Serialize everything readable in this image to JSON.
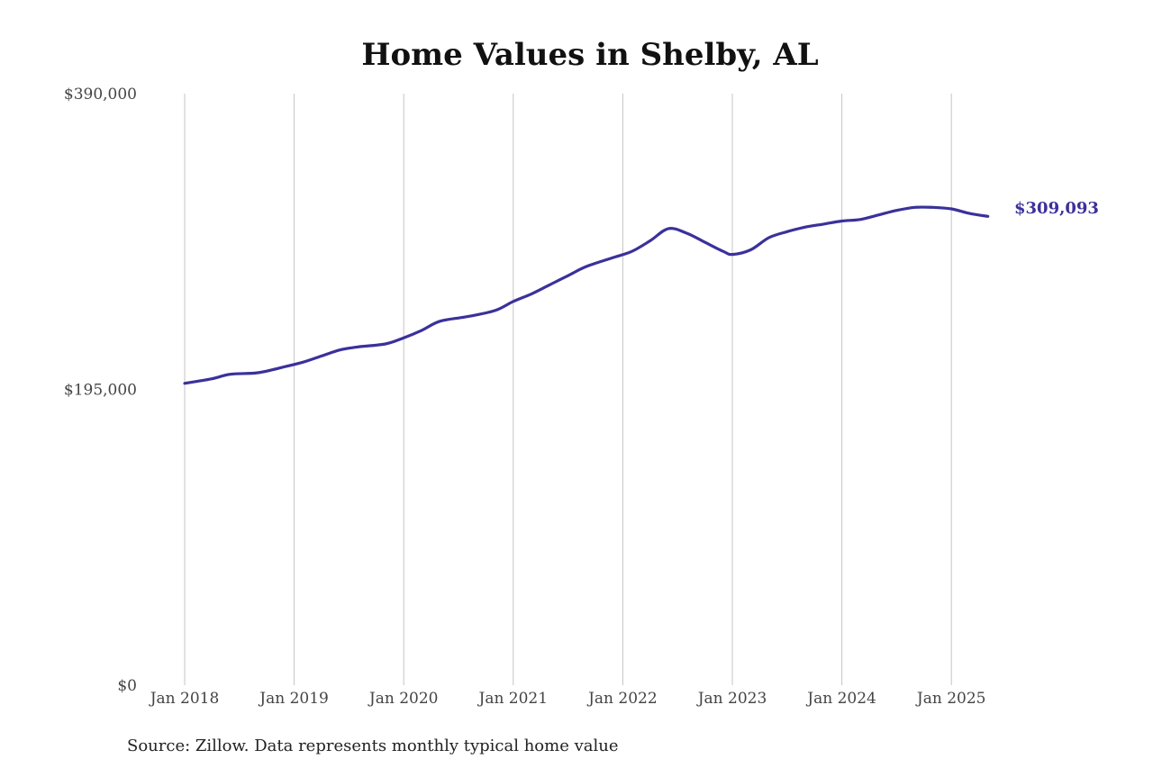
{
  "colors": {
    "series": "#3a319b",
    "title": "#111111",
    "grid": "#c4c4c4"
  },
  "footer": {
    "source": "Source: Zillow. Data represents monthly typical home value"
  },
  "chart_data": {
    "type": "line",
    "title": "Home Values in Shelby, AL",
    "ylim": [
      0,
      390000
    ],
    "yticks": [
      {
        "value": 390000,
        "label": "$390,000"
      },
      {
        "value": 195000,
        "label": "$195,000"
      },
      {
        "value": 0,
        "label": "$0"
      }
    ],
    "xticks": [
      {
        "value": "2018-01",
        "label": "Jan 2018"
      },
      {
        "value": "2019-01",
        "label": "Jan 2019"
      },
      {
        "value": "2020-01",
        "label": "Jan 2020"
      },
      {
        "value": "2021-01",
        "label": "Jan 2021"
      },
      {
        "value": "2022-01",
        "label": "Jan 2022"
      },
      {
        "value": "2023-01",
        "label": "Jan 2023"
      },
      {
        "value": "2024-01",
        "label": "Jan 2024"
      },
      {
        "value": "2025-01",
        "label": "Jan 2025"
      }
    ],
    "grid": "vertical",
    "end_label": "$309,093",
    "series": [
      {
        "x": [
          "2018-01",
          "2018-04",
          "2018-06",
          "2018-09",
          "2018-12",
          "2019-02",
          "2019-04",
          "2019-06",
          "2019-08",
          "2019-11",
          "2020-01",
          "2020-03",
          "2020-05",
          "2020-08",
          "2020-11",
          "2021-01",
          "2021-03",
          "2021-05",
          "2021-07",
          "2021-09",
          "2021-12",
          "2022-02",
          "2022-04",
          "2022-06",
          "2022-08",
          "2022-10",
          "2022-12",
          "2023-01",
          "2023-03",
          "2023-05",
          "2023-07",
          "2023-09",
          "2023-11",
          "2024-01",
          "2024-03",
          "2024-05",
          "2024-07",
          "2024-09",
          "2024-11",
          "2025-01",
          "2025-03",
          "2025-05"
        ],
        "values": [
          199000,
          202000,
          205000,
          206000,
          210000,
          213000,
          217000,
          221000,
          223000,
          225000,
          229000,
          234000,
          240000,
          243000,
          247000,
          253000,
          258000,
          264000,
          270000,
          276000,
          282000,
          286000,
          293000,
          301000,
          298000,
          292000,
          286000,
          284000,
          287000,
          295000,
          299000,
          302000,
          304000,
          306000,
          307000,
          310000,
          313000,
          315000,
          315000,
          314000,
          311000,
          309093
        ]
      }
    ]
  }
}
